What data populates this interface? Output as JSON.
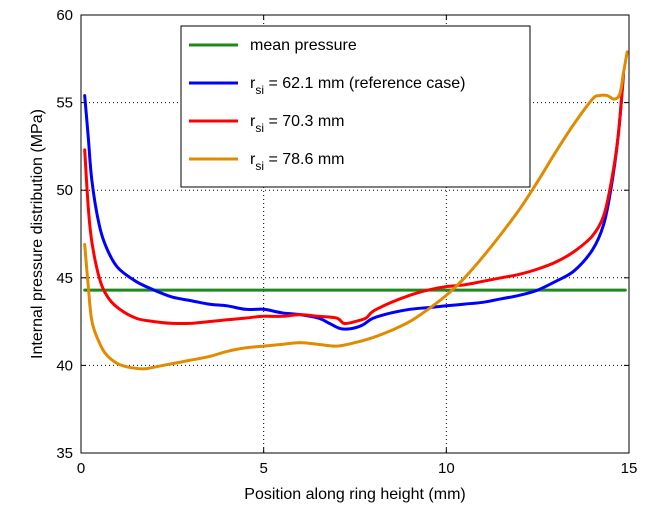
{
  "chart_data": {
    "type": "line",
    "xlabel": "Position along ring height (mm)",
    "ylabel": "Internal pressure distribution (MPa)",
    "xlim": [
      0,
      15
    ],
    "ylim": [
      35,
      60
    ],
    "xticks": [
      0,
      5,
      10,
      15
    ],
    "yticks": [
      35,
      40,
      45,
      50,
      55,
      60
    ],
    "grid": true,
    "legend_position": "top-center",
    "series": [
      {
        "name": "mean pressure",
        "legend_main": "mean pressure",
        "legend_sub": "",
        "legend_rest": "",
        "color": "#1e8a1e",
        "x": [
          0.1,
          14.9
        ],
        "y": [
          44.3,
          44.3
        ]
      },
      {
        "name": "r_si = 62.1 mm (reference case)",
        "legend_main": "r",
        "legend_sub": "si",
        "legend_rest": " = 62.1 mm (reference case)",
        "color": "#0000ff",
        "x": [
          0.1,
          0.2,
          0.3,
          0.5,
          0.7,
          1.0,
          1.5,
          2.0,
          2.5,
          3.0,
          3.5,
          4.0,
          4.5,
          5.0,
          5.5,
          6.0,
          6.5,
          6.8,
          7.1,
          7.4,
          7.7,
          8.0,
          8.5,
          9.0,
          9.5,
          10.0,
          10.5,
          11.0,
          11.5,
          12.0,
          12.5,
          13.0,
          13.5,
          14.0,
          14.3,
          14.5,
          14.7,
          14.85
        ],
        "y": [
          55.4,
          53.0,
          50.5,
          48.0,
          46.7,
          45.6,
          44.8,
          44.3,
          43.9,
          43.7,
          43.5,
          43.4,
          43.2,
          43.2,
          43.0,
          42.9,
          42.7,
          42.4,
          42.1,
          42.1,
          42.3,
          42.7,
          43.0,
          43.2,
          43.3,
          43.4,
          43.5,
          43.6,
          43.8,
          44.0,
          44.3,
          44.8,
          45.4,
          46.6,
          48.0,
          50.0,
          53.0,
          56.6
        ]
      },
      {
        "name": "r_si = 70.3 mm",
        "legend_main": "r",
        "legend_sub": "si",
        "legend_rest": " = 70.3 mm",
        "color": "#ff0000",
        "x": [
          0.1,
          0.2,
          0.3,
          0.5,
          0.7,
          1.0,
          1.5,
          2.0,
          2.5,
          3.0,
          3.5,
          4.0,
          4.5,
          5.0,
          5.5,
          6.0,
          6.5,
          7.0,
          7.2,
          7.5,
          7.8,
          8.0,
          8.5,
          9.0,
          9.5,
          10.0,
          10.5,
          11.0,
          11.5,
          12.0,
          12.5,
          13.0,
          13.5,
          14.0,
          14.3,
          14.5,
          14.7,
          14.85
        ],
        "y": [
          52.3,
          49.0,
          47.0,
          45.0,
          44.0,
          43.3,
          42.7,
          42.5,
          42.4,
          42.4,
          42.5,
          42.6,
          42.7,
          42.8,
          42.8,
          42.9,
          42.8,
          42.7,
          42.4,
          42.5,
          42.7,
          43.1,
          43.6,
          44.0,
          44.3,
          44.5,
          44.6,
          44.8,
          45.0,
          45.2,
          45.5,
          45.9,
          46.5,
          47.4,
          48.5,
          50.3,
          53.0,
          56.7
        ]
      },
      {
        "name": "r_si = 78.6 mm",
        "legend_main": "r",
        "legend_sub": "si",
        "legend_rest": " = 78.6 mm",
        "color": "#e08b00",
        "x": [
          0.1,
          0.2,
          0.3,
          0.5,
          0.7,
          1.0,
          1.3,
          1.7,
          2.0,
          2.5,
          3.0,
          3.5,
          4.0,
          4.5,
          5.0,
          5.5,
          6.0,
          6.5,
          7.0,
          7.5,
          8.0,
          8.5,
          9.0,
          9.5,
          10.0,
          10.5,
          11.0,
          11.5,
          12.0,
          12.5,
          13.0,
          13.5,
          14.0,
          14.2,
          14.4,
          14.6,
          14.75,
          14.85,
          14.95
        ],
        "y": [
          46.9,
          44.5,
          42.5,
          41.3,
          40.6,
          40.1,
          39.9,
          39.8,
          39.9,
          40.1,
          40.3,
          40.5,
          40.8,
          41.0,
          41.1,
          41.2,
          41.3,
          41.2,
          41.1,
          41.3,
          41.6,
          42.0,
          42.5,
          43.2,
          44.0,
          45.0,
          46.2,
          47.5,
          48.9,
          50.5,
          52.2,
          53.8,
          55.2,
          55.4,
          55.4,
          55.2,
          55.5,
          56.7,
          57.9
        ]
      }
    ]
  }
}
